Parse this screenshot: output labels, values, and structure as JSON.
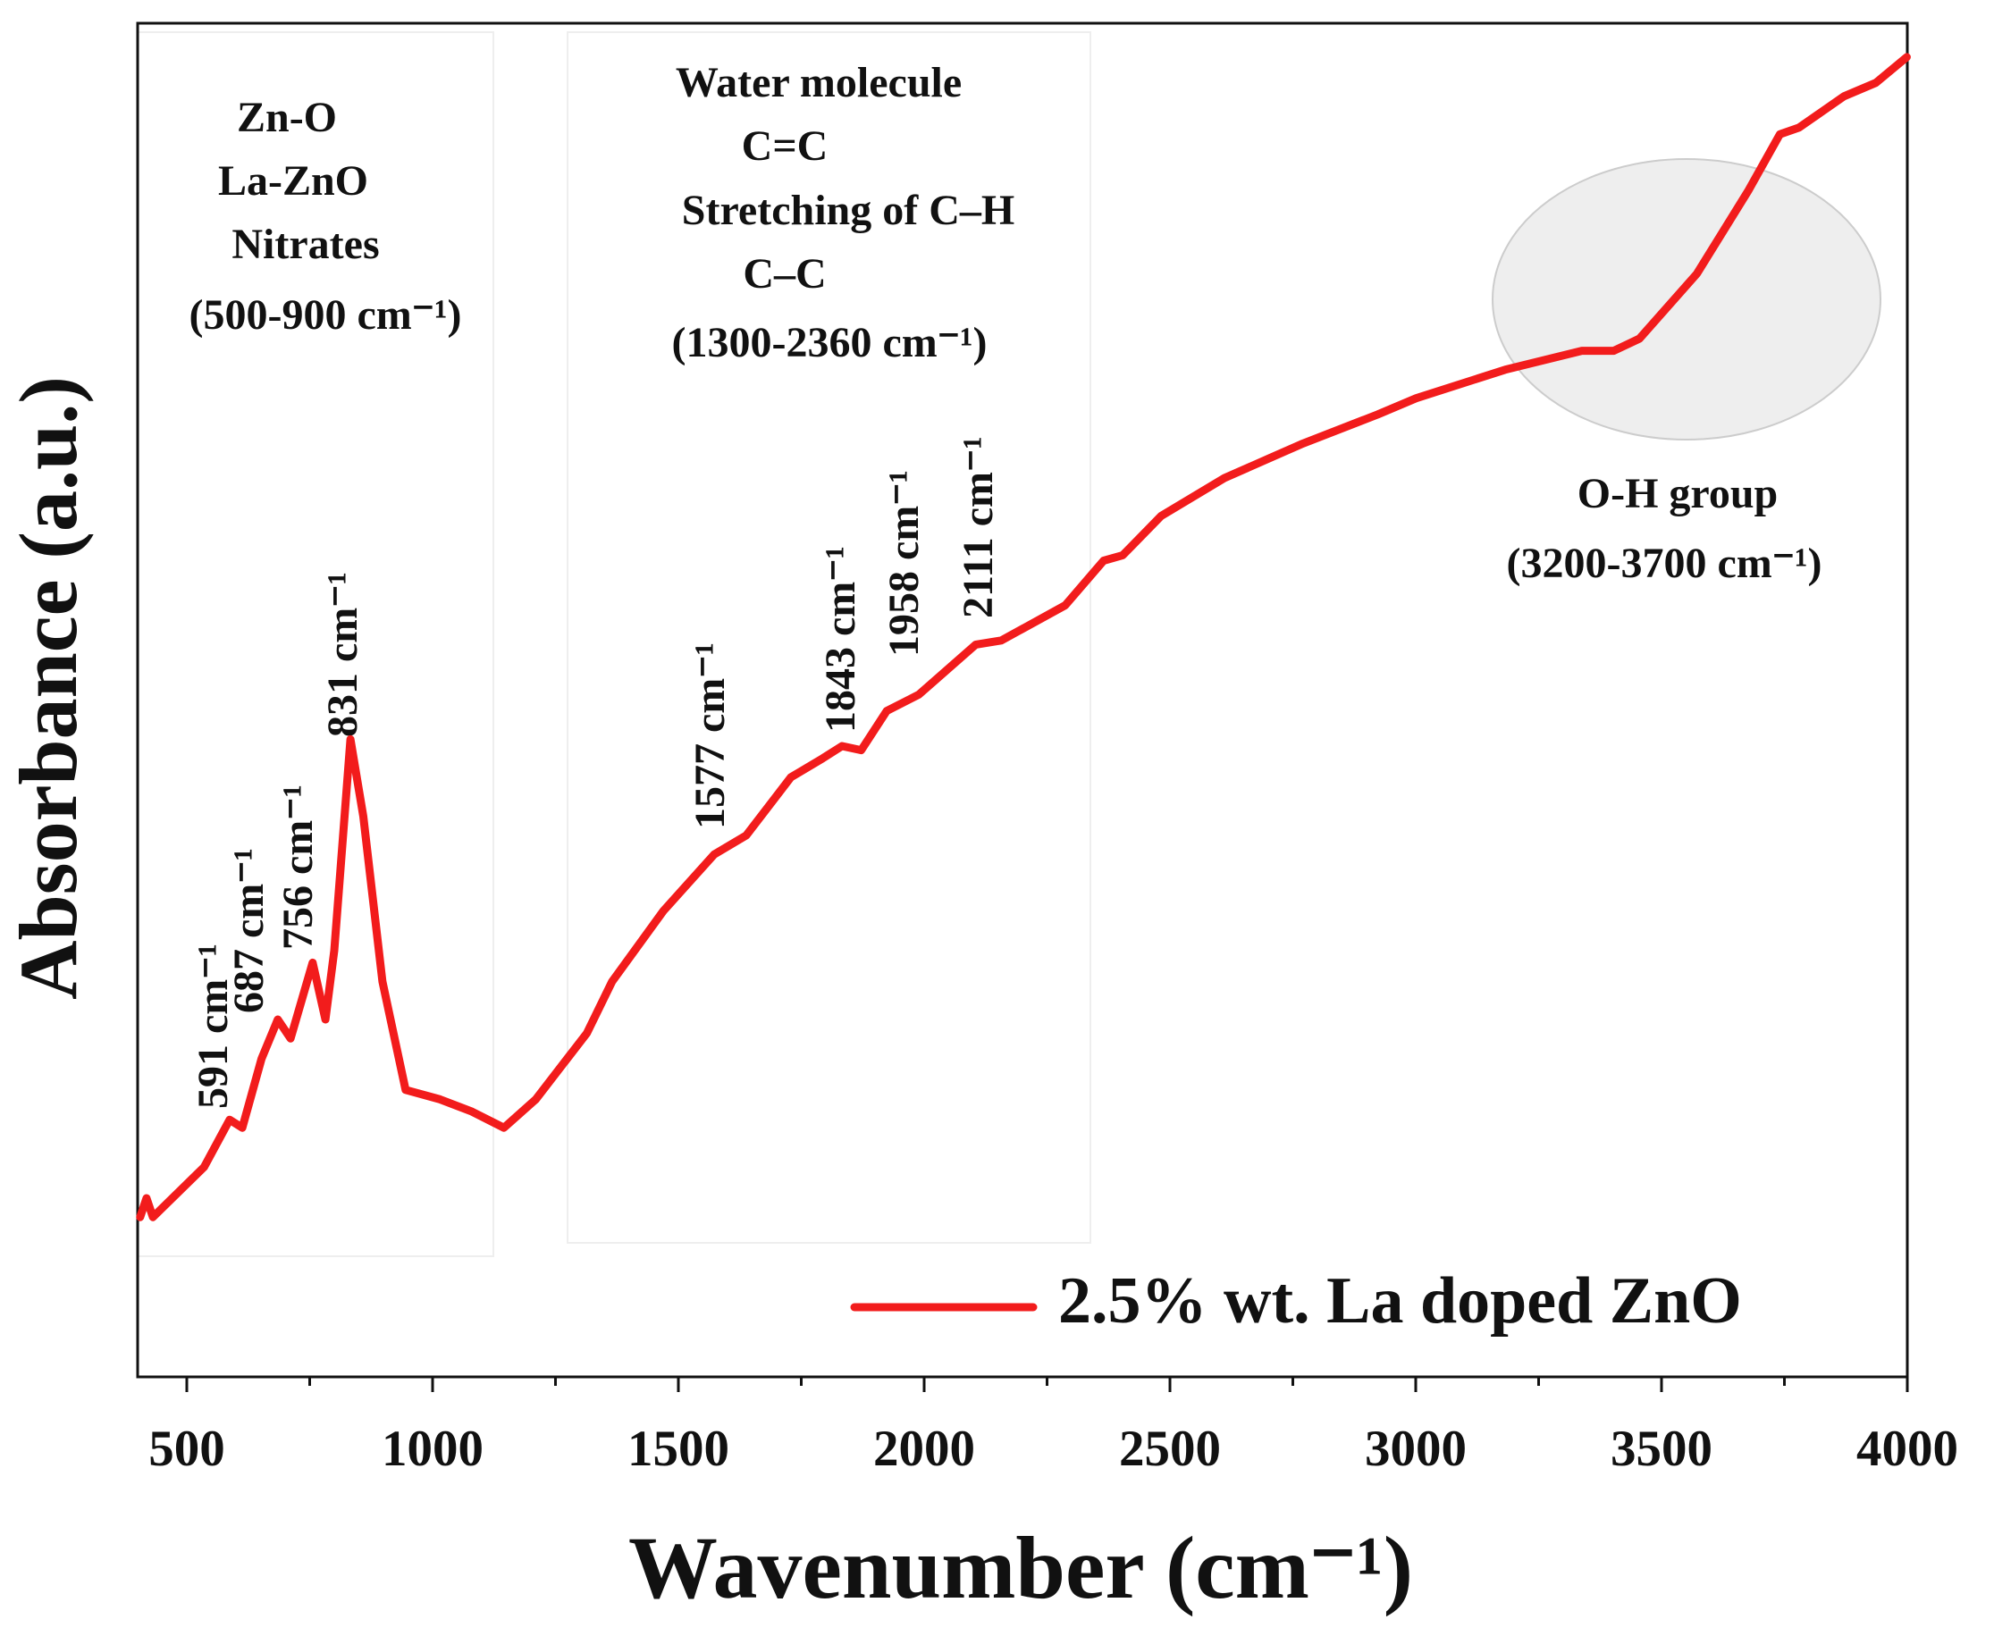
{
  "chart_data": {
    "type": "line",
    "x_label": "Wavenumber (cm⁻¹)",
    "y_label": "Absorbance (a.u.)",
    "x": [
      405,
      418,
      431,
      535,
      587,
      613,
      652,
      685,
      711,
      756,
      782,
      800,
      833,
      859,
      898,
      945,
      1015,
      1080,
      1145,
      1210,
      1314,
      1365,
      1469,
      1573,
      1638,
      1729,
      1794,
      1833,
      1872,
      1924,
      1989,
      2105,
      2157,
      2287,
      2365,
      2404,
      2482,
      2611,
      2767,
      2923,
      3001,
      3182,
      3338,
      3403,
      3455,
      3572,
      3676,
      3741,
      3780,
      3871,
      3936,
      3999
    ],
    "series": [
      {
        "name": "2.5% wt. La doped ZnO",
        "color": "#f21c1c",
        "values": [
          11.8,
          13.2,
          11.8,
          15.5,
          19.0,
          18.4,
          23.5,
          26.4,
          25.0,
          30.6,
          26.4,
          31.5,
          47.1,
          41.4,
          29.2,
          21.2,
          20.5,
          19.6,
          18.4,
          20.5,
          25.4,
          29.2,
          34.4,
          38.6,
          40.0,
          44.3,
          45.7,
          46.6,
          46.3,
          49.2,
          50.4,
          54.1,
          54.4,
          57.0,
          60.3,
          60.7,
          63.6,
          66.4,
          68.9,
          71.1,
          72.3,
          74.4,
          75.8,
          75.8,
          76.7,
          81.5,
          87.6,
          91.8,
          92.3,
          94.6,
          95.6,
          97.5
        ]
      }
    ],
    "xlim": [
      400,
      4000
    ],
    "xticks": [
      500,
      1000,
      1500,
      2000,
      2500,
      3000,
      3500,
      4000
    ],
    "minor_xticks": [
      750,
      1250,
      1750,
      2250,
      2750,
      3250,
      3750
    ],
    "ylim": [
      0,
      100
    ],
    "annotations": [
      "Zn-O",
      "La-ZnO",
      "Nitrates",
      "(500-900 cm⁻¹)",
      "Water molecule",
      "C=C",
      "Stretching of C–H",
      "C–C",
      "(1300-2360 cm⁻¹)",
      "O-H group",
      "(3200-3700 cm⁻¹)",
      "591 cm⁻¹",
      "687 cm⁻¹",
      "756 cm⁻¹",
      "831 cm⁻¹",
      "1577 cm⁻¹",
      "1843 cm⁻¹",
      "1958 cm⁻¹",
      "2111 cm⁻¹"
    ]
  }
}
